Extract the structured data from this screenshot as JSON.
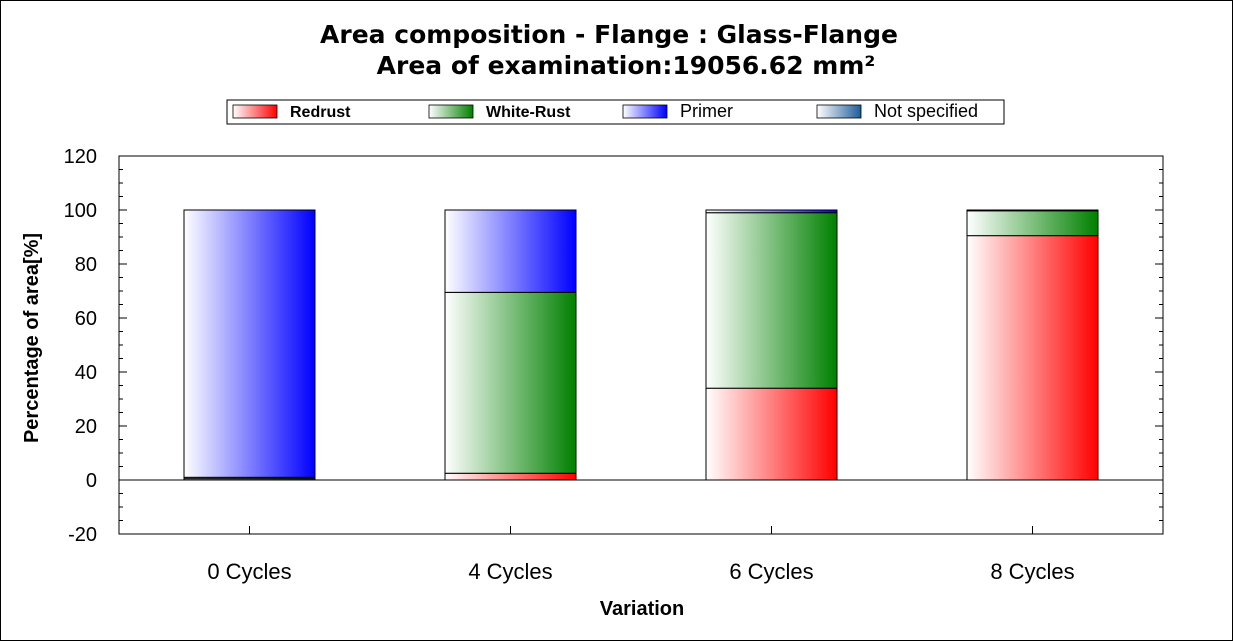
{
  "chart_data": {
    "type": "bar",
    "stacked": true,
    "title": "Area composition -  Flange : Glass-Flange",
    "subtitle": "Area of examination:19056.62 mm²",
    "xlabel": "Variation",
    "ylabel": "Percentage of area[%]",
    "ylim": [
      -20,
      120
    ],
    "yticks": [
      -20,
      0,
      20,
      40,
      60,
      80,
      100,
      120
    ],
    "categories": [
      "0 Cycles",
      "4 Cycles",
      "6 Cycles",
      "8 Cycles"
    ],
    "series": [
      {
        "name": "Redrust",
        "color": "#ff0000",
        "values": [
          0.5,
          2.5,
          34,
          90.5
        ]
      },
      {
        "name": "White-Rust",
        "color": "#008000",
        "values": [
          0.5,
          67,
          65,
          9.2
        ]
      },
      {
        "name": "Primer",
        "color": "#0000ff",
        "values": [
          99,
          30.5,
          1,
          0.3
        ]
      },
      {
        "name": "Not specified",
        "color": "#1f5c99",
        "values": [
          0,
          0,
          0,
          0
        ]
      }
    ],
    "legend": "top-center",
    "grid": false
  }
}
